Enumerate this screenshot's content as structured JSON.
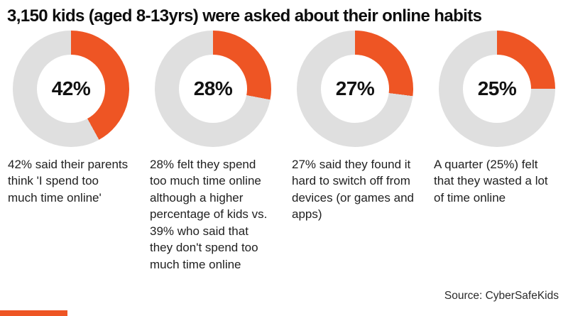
{
  "title": "3,150 kids (aged 8-13yrs) were asked about their online habits",
  "source": "Source: CyberSafeKids",
  "colors": {
    "accent": "#ee5524",
    "track": "#dfdfdf",
    "text": "#1b1b1b"
  },
  "chart_data": {
    "type": "pie",
    "subtype": "donut-small-multiples",
    "title": "3,150 kids (aged 8-13yrs) were asked about their online habits",
    "legend": "none",
    "sample_size": "3,150",
    "units": "%",
    "charts": [
      {
        "value": 42,
        "remainder": 58,
        "center_label": "42%",
        "caption": "42% said their parents think 'I spend too much time online'"
      },
      {
        "value": 28,
        "remainder": 72,
        "center_label": "28%",
        "caption": "28% felt they spend too much time online although a higher percentage of kids vs. 39% who said that they don't spend too much time online"
      },
      {
        "value": 27,
        "remainder": 73,
        "center_label": "27%",
        "caption": "27% said they found it hard to switch off from devices (or games and apps)"
      },
      {
        "value": 25,
        "remainder": 75,
        "center_label": "25%",
        "caption": "A quarter (25%) felt that they wasted a lot of time online"
      }
    ]
  }
}
